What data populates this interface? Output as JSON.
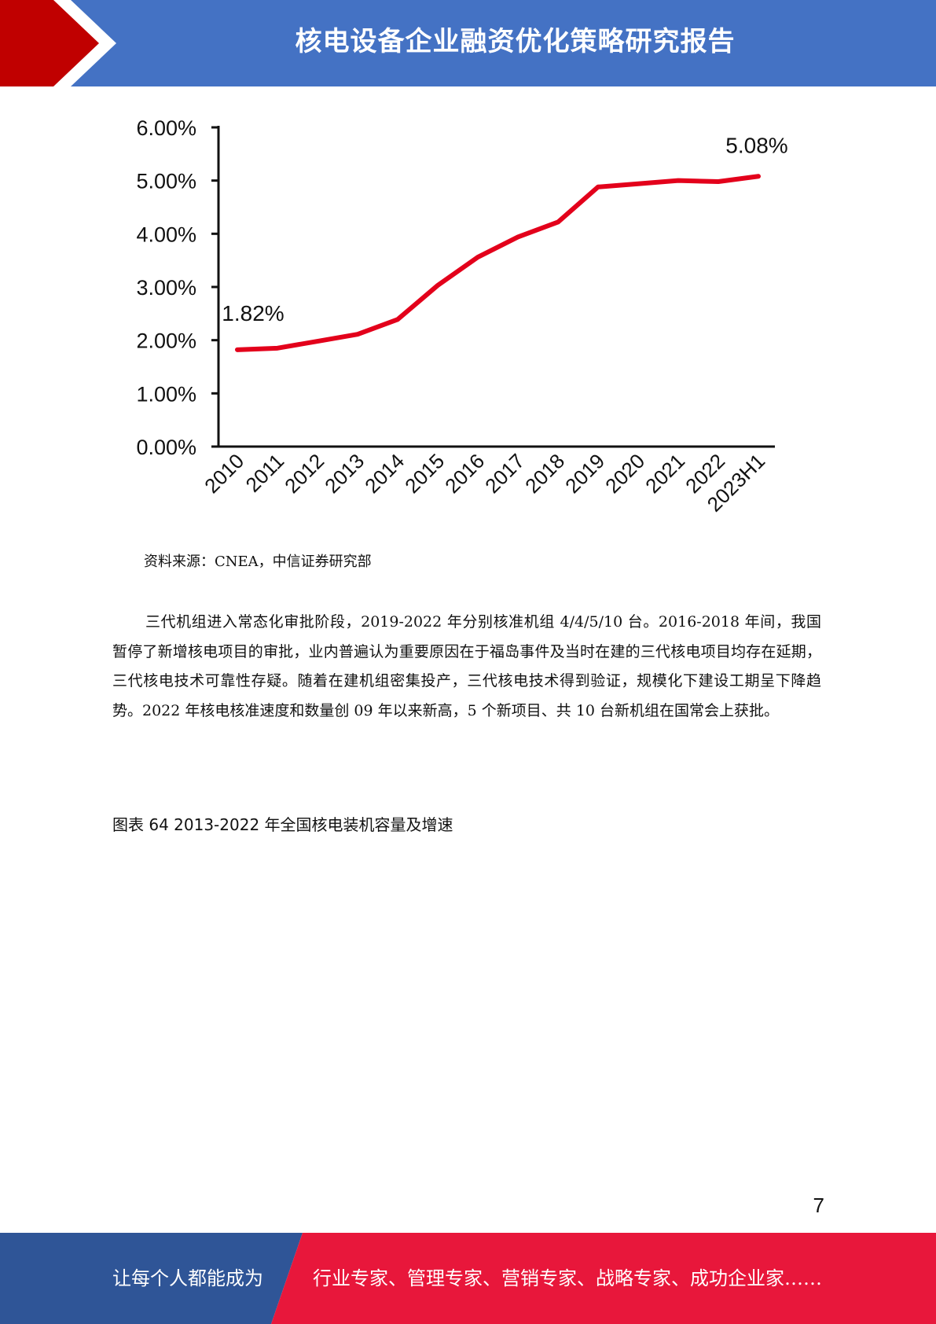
{
  "header": {
    "title": "核电设备企业融资优化策略研究报告",
    "colors": {
      "banner": "#4472c4",
      "accent": "#c00000"
    }
  },
  "chart_data": {
    "type": "line",
    "categories": [
      "2010",
      "2011",
      "2012",
      "2013",
      "2014",
      "2015",
      "2016",
      "2017",
      "2018",
      "2019",
      "2020",
      "2021",
      "2022",
      "2023H1"
    ],
    "series": [
      {
        "values": [
          1.82,
          1.85,
          1.98,
          2.11,
          2.39,
          3.03,
          3.56,
          3.94,
          4.22,
          4.88,
          4.94,
          5.0,
          4.98,
          5.08
        ],
        "color": "#e3001b"
      }
    ],
    "ylim": [
      0,
      6
    ],
    "yticks": [
      "0.00%",
      "1.00%",
      "2.00%",
      "3.00%",
      "4.00%",
      "5.00%",
      "6.00%"
    ],
    "data_labels": [
      {
        "index": 0,
        "text": "1.82%"
      },
      {
        "index": 13,
        "text": "5.08%"
      }
    ],
    "grid": false,
    "title": "",
    "xlabel": "",
    "ylabel": ""
  },
  "source": "资料来源：CNEA，中信证券研究部",
  "body": {
    "paragraph": "三代机组进入常态化审批阶段，2019-2022 年分别核准机组 4/4/5/10 台。2016-2018 年间，我国暂停了新增核电项目的审批，业内普遍认为重要原因在于福岛事件及当时在建的三代核电项目均存在延期，三代核电技术可靠性存疑。随着在建机组密集投产，三代核电技术得到验证，规模化下建设工期呈下降趋势。2022 年核电核准速度和数量创 09 年以来新高，5 个新项目、共 10 台新机组在国常会上获批。"
  },
  "figure_caption": "图表  64 2013-2022 年全国核电装机容量及增速",
  "page_number": "7",
  "footer": {
    "left_text": "让每个人都能成为",
    "right_text": "行业专家、管理专家、营销专家、战略专家、成功企业家……",
    "colors": {
      "left": "#2f5597",
      "right": "#e8173b"
    }
  }
}
